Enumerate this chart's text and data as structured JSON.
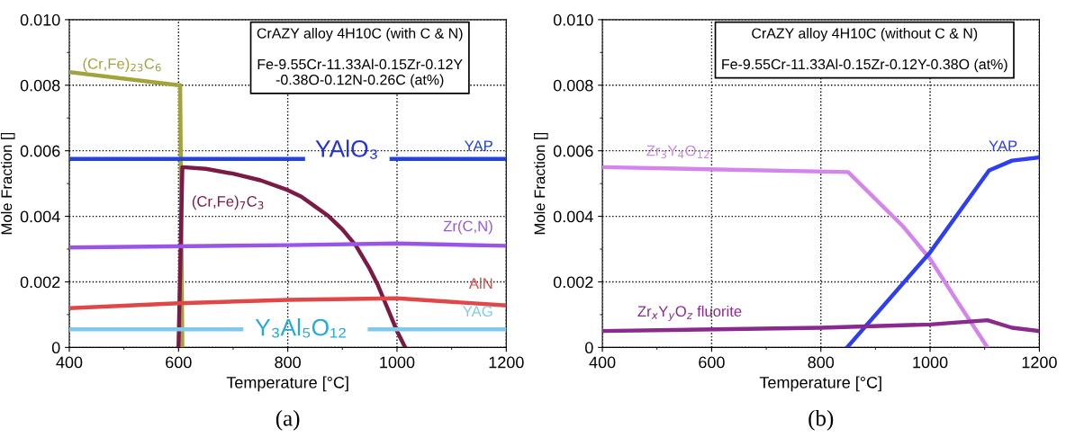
{
  "chart_data": [
    {
      "type": "line",
      "title": "(a)",
      "xlabel": "Temperature [°C]",
      "ylabel": "Mole Fraction []",
      "xlim": [
        400,
        1200
      ],
      "ylim": [
        0,
        0.01
      ],
      "xticks": [
        400,
        600,
        800,
        1000,
        1200
      ],
      "yticks": [
        0,
        0.002,
        0.004,
        0.006,
        0.008,
        {
          "value": 0.01,
          "label": "0.010"
        }
      ],
      "grid": true,
      "legend": false,
      "marker": "none",
      "line_style": "solid",
      "annotations": [
        "CrAZY alloy 4H10C (with C & N)",
        "Fe-9.55Cr-11.33Al-0.15Zr-0.12Y\n-0.38O-0.12N-0.26C (at%)",
        "YAlO₃",
        "Y₃Al₅O₁₂"
      ],
      "series": [
        {
          "name": "(Cr,Fe)$_{23}$C$_{6}$",
          "color": "#a3a33c",
          "x": [
            400,
            600,
            603,
            607
          ],
          "values": [
            0.0084,
            0.008,
            0.008,
            0
          ]
        },
        {
          "name": "YAP",
          "color": "#2244dd",
          "x": [
            400,
            828,
            900,
            990,
            1200
          ],
          "values": [
            0.00575,
            0.00575,
            null,
            0.00575,
            0.00575
          ]
        },
        {
          "name": "(Cr,Fe)$_{7}$C$_{3}$",
          "color": "#7a1a45",
          "x": [
            600,
            607,
            650,
            700,
            750,
            800,
            825,
            850,
            875,
            900,
            925,
            950,
            965,
            980,
            1000,
            1015
          ],
          "values": [
            0,
            0.0055,
            0.00545,
            0.0053,
            0.0051,
            0.0048,
            0.0046,
            0.0043,
            0.004,
            0.0036,
            0.0031,
            0.0024,
            0.0019,
            0.0013,
            0.0005,
            0
          ]
        },
        {
          "name": "Zr(C,N)",
          "color": "#9a55e6",
          "x": [
            400,
            800,
            1000,
            1200
          ],
          "values": [
            0.00305,
            0.00312,
            0.00317,
            0.0031
          ]
        },
        {
          "name": "AlN",
          "color": "#e04848",
          "x": [
            400,
            600,
            800,
            1000,
            1200
          ],
          "values": [
            0.0012,
            0.00135,
            0.00145,
            0.0015,
            0.00128
          ]
        },
        {
          "name": "YAG",
          "color": "#7fcaec",
          "x": [
            400,
            715,
            830,
            950,
            1200
          ],
          "values": [
            0.00055,
            0.00055,
            null,
            0.00055,
            0.00055
          ]
        }
      ]
    },
    {
      "type": "line",
      "title": "(b)",
      "xlabel": "Temperature [°C]",
      "ylabel": "Mole Fraction []",
      "xlim": [
        400,
        1200
      ],
      "ylim": [
        0,
        0.01
      ],
      "xticks": [
        400,
        600,
        800,
        1000,
        1200
      ],
      "yticks": [
        0,
        0.002,
        0.004,
        0.006,
        0.008,
        {
          "value": 0.01,
          "label": "0.010"
        }
      ],
      "grid": true,
      "legend": false,
      "marker": "none",
      "line_style": "solid",
      "annotations": [
        "CrAZY alloy 4H10C (without C & N)",
        "Fe-9.55Cr-11.33Al-0.15Zr-0.12Y-0.38O (at%)"
      ],
      "series": [
        {
          "name": "Zr$_{3}$Y$_{4}$O$_{12}$",
          "color": "#d484ec",
          "x": [
            400,
            850,
            950,
            1000,
            1050,
            1105
          ],
          "values": [
            0.0055,
            0.00535,
            0.0037,
            0.0027,
            0.0014,
            0
          ]
        },
        {
          "name": "YAP",
          "color": "#2e3ef0",
          "x": [
            848,
            1000,
            1108,
            1150,
            1200
          ],
          "values": [
            0,
            0.0029,
            0.0054,
            0.0057,
            0.0058
          ]
        },
        {
          "name": "Zr$_{x}$Y$_{y}$O$_{z}$ fluorite",
          "color": "#8a2a8e",
          "x": [
            400,
            800,
            1000,
            1105,
            1150,
            1200
          ],
          "values": [
            0.0005,
            0.0006,
            0.0007,
            0.00083,
            0.0006,
            0.0005
          ]
        }
      ]
    }
  ]
}
